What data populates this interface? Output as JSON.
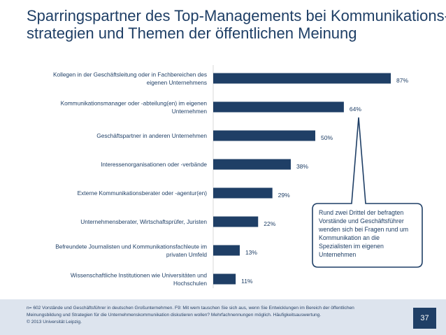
{
  "title": {
    "line1": "Sparringspartner des Top-Managements bei Kommunikations-",
    "line2": "strategien und Themen der öffentlichen Meinung"
  },
  "chart_data": {
    "type": "bar",
    "orientation": "horizontal",
    "categories": [
      [
        "Kollegen in der Geschäftsleitung oder in Fachbereichen des",
        "eigenen Unternehmens"
      ],
      [
        "Kommunikationsmanager oder -abteilung(en) im eigenen",
        "Unternehmen"
      ],
      [
        "Geschäftspartner in anderen Unternehmen"
      ],
      [
        "Interessenorganisationen oder -verbände"
      ],
      [
        "Externe Kommunikationsberater oder -agentur(en)"
      ],
      [
        "Unternehmensberater, Wirtschaftsprüfer, Juristen"
      ],
      [
        "Befreundete Journalisten und Kommunikationsfachleute im",
        "privaten Umfeld"
      ],
      [
        "Wissenschaftliche Institutionen wie Universitäten und",
        "Hochschulen"
      ]
    ],
    "values": [
      87,
      64,
      50,
      38,
      29,
      22,
      13,
      11
    ],
    "value_labels": [
      "87%",
      "64%",
      "50%",
      "38%",
      "29%",
      "22%",
      "13%",
      "11%"
    ],
    "bar_color": "#1f3f66",
    "grid": false,
    "xlim": [
      0,
      100
    ]
  },
  "callout": {
    "text": "Rund zwei Drittel der befragten Vorstände und Geschäftsführer wenden sich bei Fragen rund um Kommunikation an die Spezialisten im eigenen Unternehmen",
    "lines": [
      "Rund zwei Drittel der befragten",
      "Vorstände und Geschäftsführer",
      "wenden sich bei Fragen rund um",
      "Kommunikation an die",
      "Spezialisten im eigenen",
      "Unternehmen"
    ],
    "border_color": "#1f3f66"
  },
  "footer": {
    "line1": "n= 602 Vorstände und Geschäftsführer in deutschen Großunternehmen. F9: Mit wem tauschen Sie sich aus, wenn Sie Entwicklungen im Bereich der öffentlichen",
    "line2": "Meinungsbildung und Strategien für die Unternehmenskommunikation diskutieren wollen? Mehrfachnennungen möglich. Häufigkeitsauswertung.",
    "line3": "© 2013 Universität Leipzig.",
    "page_number": "37"
  }
}
